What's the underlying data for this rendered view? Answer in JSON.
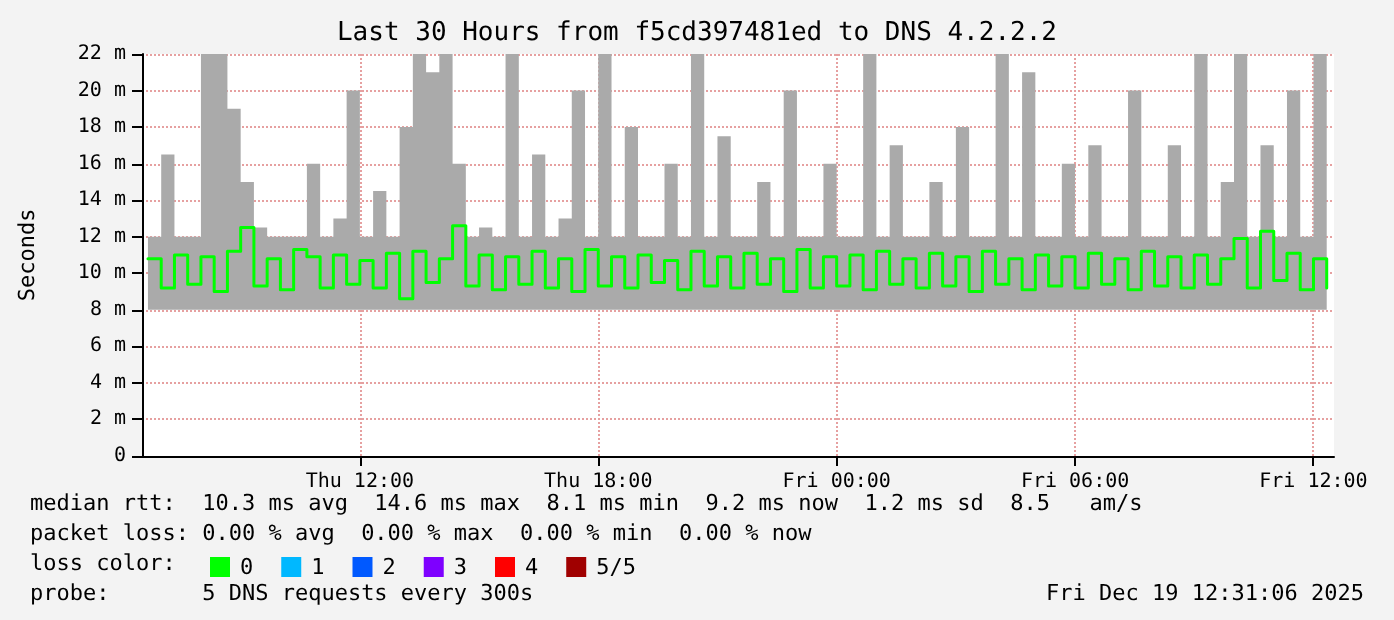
{
  "chart_data": {
    "type": "step",
    "title": "Last 30 Hours from f5cd397481ed to DNS 4.2.2.2",
    "ylabel": "Seconds",
    "legend_title": "loss color:",
    "legend": "bottom",
    "grid": true,
    "marker": "none",
    "line_style": "solid",
    "annotations": [
      "median rtt:  10.3 ms avg  14.6 ms max  8.1 ms min  9.2 ms now  1.2 ms sd  8.5   am/s",
      "packet loss: 0.00 % avg  0.00 % max  0.00 % min  0.00 % now",
      "probe:       5 DNS requests every 300s",
      "Fri Dec 19 12:31:06 2025"
    ],
    "xlim": [
      "2025-12-18T06:31",
      "2025-12-19T12:31"
    ],
    "xticks": [
      {
        "value": "2025-12-18T12:00",
        "label": "Thu 12:00"
      },
      {
        "value": "2025-12-18T18:00",
        "label": "Thu 18:00"
      },
      {
        "value": "2025-12-19T00:00",
        "label": "Fri 00:00"
      },
      {
        "value": "2025-12-19T06:00",
        "label": "Fri 06:00"
      },
      {
        "value": "2025-12-19T12:00",
        "label": "Fri 12:00"
      }
    ],
    "ylim": [
      0,
      22
    ],
    "yticks": [
      0,
      {
        "value": 2,
        "label": "2 m"
      },
      {
        "value": 4,
        "label": "4 m"
      },
      {
        "value": 6,
        "label": "6 m"
      },
      {
        "value": 8,
        "label": "8 m"
      },
      {
        "value": 10,
        "label": "10 m"
      },
      {
        "value": 12,
        "label": "12 m"
      },
      {
        "value": 14,
        "label": "14 m"
      },
      {
        "value": 16,
        "label": "16 m"
      },
      {
        "value": 18,
        "label": "18 m"
      },
      {
        "value": 20,
        "label": "20 m"
      },
      {
        "value": 22,
        "label": "22 m"
      }
    ],
    "x": [
      "2025-12-18T06:40",
      "2025-12-18T07:00",
      "2025-12-18T07:20",
      "2025-12-18T07:40",
      "2025-12-18T08:00",
      "2025-12-18T08:20",
      "2025-12-18T08:40",
      "2025-12-18T09:00",
      "2025-12-18T09:20",
      "2025-12-18T09:40",
      "2025-12-18T10:00",
      "2025-12-18T10:20",
      "2025-12-18T10:40",
      "2025-12-18T11:00",
      "2025-12-18T11:20",
      "2025-12-18T11:40",
      "2025-12-18T12:00",
      "2025-12-18T12:20",
      "2025-12-18T12:40",
      "2025-12-18T13:00",
      "2025-12-18T13:20",
      "2025-12-18T13:40",
      "2025-12-18T14:00",
      "2025-12-18T14:20",
      "2025-12-18T14:40",
      "2025-12-18T15:00",
      "2025-12-18T15:20",
      "2025-12-18T15:40",
      "2025-12-18T16:00",
      "2025-12-18T16:20",
      "2025-12-18T16:40",
      "2025-12-18T17:00",
      "2025-12-18T17:20",
      "2025-12-18T17:40",
      "2025-12-18T18:00",
      "2025-12-18T18:20",
      "2025-12-18T18:40",
      "2025-12-18T19:00",
      "2025-12-18T19:20",
      "2025-12-18T19:40",
      "2025-12-18T20:00",
      "2025-12-18T20:20",
      "2025-12-18T20:40",
      "2025-12-18T21:00",
      "2025-12-18T21:20",
      "2025-12-18T21:40",
      "2025-12-18T22:00",
      "2025-12-18T22:20",
      "2025-12-18T22:40",
      "2025-12-18T23:00",
      "2025-12-18T23:20",
      "2025-12-18T23:40",
      "2025-12-19T00:00",
      "2025-12-19T00:20",
      "2025-12-19T00:40",
      "2025-12-19T01:00",
      "2025-12-19T01:20",
      "2025-12-19T01:40",
      "2025-12-19T02:00",
      "2025-12-19T02:20",
      "2025-12-19T02:40",
      "2025-12-19T03:00",
      "2025-12-19T03:20",
      "2025-12-19T03:40",
      "2025-12-19T04:00",
      "2025-12-19T04:20",
      "2025-12-19T04:40",
      "2025-12-19T05:00",
      "2025-12-19T05:20",
      "2025-12-19T05:40",
      "2025-12-19T06:00",
      "2025-12-19T06:20",
      "2025-12-19T06:40",
      "2025-12-19T07:00",
      "2025-12-19T07:20",
      "2025-12-19T07:40",
      "2025-12-19T08:00",
      "2025-12-19T08:20",
      "2025-12-19T08:40",
      "2025-12-19T09:00",
      "2025-12-19T09:20",
      "2025-12-19T09:40",
      "2025-12-19T10:00",
      "2025-12-19T10:20",
      "2025-12-19T10:40",
      "2025-12-19T11:00",
      "2025-12-19T11:20",
      "2025-12-19T11:40",
      "2025-12-19T12:00",
      "2025-12-19T12:20"
    ],
    "series": [
      {
        "name": "0",
        "color": "#00ff00",
        "values": [
          10.8,
          9.2,
          11,
          9.4,
          10.9,
          9,
          11.2,
          12.5,
          9.3,
          10.8,
          9.1,
          11.3,
          10.9,
          9.2,
          11,
          9.4,
          10.7,
          9.2,
          11.1,
          8.6,
          11.2,
          9.5,
          10.8,
          12.6,
          9.3,
          11,
          9.1,
          10.9,
          9.4,
          11.2,
          9.2,
          10.8,
          9,
          11.3,
          9.3,
          10.9,
          9.2,
          11,
          9.5,
          10.7,
          9.1,
          11.2,
          9.3,
          10.9,
          9.2,
          11.1,
          9.4,
          10.8,
          9,
          11.3,
          9.2,
          10.9,
          9.3,
          11,
          9.1,
          11.2,
          9.4,
          10.8,
          9.2,
          11.1,
          9.3,
          10.9,
          9,
          11.2,
          9.4,
          10.8,
          9.1,
          11,
          9.3,
          10.9,
          9.2,
          11.1,
          9.4,
          10.8,
          9.1,
          11.2,
          9.3,
          10.9,
          9.2,
          11,
          9.4,
          10.8,
          11.9,
          9.2,
          12.3,
          9.6,
          11.1,
          9.1,
          10.8,
          9.2
        ],
        "lower": [
          8,
          8,
          8,
          8,
          8,
          8,
          8,
          8,
          8,
          8,
          8,
          8,
          8,
          8,
          8,
          8,
          8,
          8,
          8,
          8,
          8,
          8,
          8,
          8,
          8,
          8,
          8,
          8,
          8,
          8,
          8,
          8,
          8,
          8,
          8,
          8,
          8,
          8,
          8,
          8,
          8,
          8,
          8,
          8,
          8,
          8,
          8,
          8,
          8,
          8,
          8,
          8,
          8,
          8,
          8,
          8,
          8,
          8,
          8,
          8,
          8,
          8,
          8,
          8,
          8,
          8,
          8,
          8,
          8,
          8,
          8,
          8,
          8,
          8,
          8,
          8,
          8,
          8,
          8,
          8,
          8,
          8,
          8,
          8,
          8,
          8,
          8,
          8,
          8,
          8
        ],
        "upper": [
          12,
          16.5,
          12,
          12,
          22,
          22,
          19,
          15,
          12.5,
          12,
          12,
          12,
          16,
          12,
          13,
          20,
          12,
          14.5,
          12,
          18,
          22,
          21,
          22,
          16,
          12,
          12.5,
          12,
          22,
          12,
          16.5,
          12,
          13,
          20,
          12,
          22,
          12,
          18,
          12,
          12,
          16,
          12,
          22,
          12,
          17.5,
          12,
          12,
          15,
          12,
          20,
          12,
          12,
          16,
          12,
          12,
          22,
          12,
          17,
          12,
          12,
          15,
          12,
          18,
          12,
          12,
          22,
          12,
          21,
          12,
          12,
          16,
          12,
          17,
          12,
          12,
          20,
          12,
          12,
          17,
          12,
          22,
          12,
          15,
          22,
          12,
          17,
          12,
          20,
          12,
          22,
          15
        ]
      },
      {
        "name": "1",
        "color": "#00b8ff",
        "values": [
          null,
          null,
          null,
          null,
          null,
          null,
          null,
          null,
          null,
          null,
          null,
          null,
          null,
          null,
          null,
          null,
          null,
          null,
          null,
          null,
          null,
          null,
          null,
          null,
          null,
          null,
          null,
          null,
          null,
          null,
          null,
          null,
          null,
          null,
          null,
          null,
          null,
          null,
          null,
          null,
          null,
          null,
          null,
          null,
          null,
          null,
          null,
          null,
          null,
          null,
          null,
          null,
          null,
          null,
          null,
          null,
          null,
          null,
          null,
          null,
          null,
          null,
          null,
          null,
          null,
          null,
          null,
          null,
          null,
          null,
          null,
          null,
          null,
          null,
          null,
          null,
          null,
          null,
          null,
          null,
          null,
          null,
          null,
          null,
          null,
          null,
          null,
          null,
          null,
          null
        ]
      },
      {
        "name": "2",
        "color": "#0059ff",
        "values": [
          null,
          null,
          null,
          null,
          null,
          null,
          null,
          null,
          null,
          null,
          null,
          null,
          null,
          null,
          null,
          null,
          null,
          null,
          null,
          null,
          null,
          null,
          null,
          null,
          null,
          null,
          null,
          null,
          null,
          null,
          null,
          null,
          null,
          null,
          null,
          null,
          null,
          null,
          null,
          null,
          null,
          null,
          null,
          null,
          null,
          null,
          null,
          null,
          null,
          null,
          null,
          null,
          null,
          null,
          null,
          null,
          null,
          null,
          null,
          null,
          null,
          null,
          null,
          null,
          null,
          null,
          null,
          null,
          null,
          null,
          null,
          null,
          null,
          null,
          null,
          null,
          null,
          null,
          null,
          null,
          null,
          null,
          null,
          null,
          null,
          null,
          null,
          null,
          null,
          null
        ]
      },
      {
        "name": "3",
        "color": "#7e00ff",
        "values": [
          null,
          null,
          null,
          null,
          null,
          null,
          null,
          null,
          null,
          null,
          null,
          null,
          null,
          null,
          null,
          null,
          null,
          null,
          null,
          null,
          null,
          null,
          null,
          null,
          null,
          null,
          null,
          null,
          null,
          null,
          null,
          null,
          null,
          null,
          null,
          null,
          null,
          null,
          null,
          null,
          null,
          null,
          null,
          null,
          null,
          null,
          null,
          null,
          null,
          null,
          null,
          null,
          null,
          null,
          null,
          null,
          null,
          null,
          null,
          null,
          null,
          null,
          null,
          null,
          null,
          null,
          null,
          null,
          null,
          null,
          null,
          null,
          null,
          null,
          null,
          null,
          null,
          null,
          null,
          null,
          null,
          null,
          null,
          null,
          null,
          null,
          null,
          null,
          null,
          null
        ]
      },
      {
        "name": "4",
        "color": "#ff0000",
        "values": [
          null,
          null,
          null,
          null,
          null,
          null,
          null,
          null,
          null,
          null,
          null,
          null,
          null,
          null,
          null,
          null,
          null,
          null,
          null,
          null,
          null,
          null,
          null,
          null,
          null,
          null,
          null,
          null,
          null,
          null,
          null,
          null,
          null,
          null,
          null,
          null,
          null,
          null,
          null,
          null,
          null,
          null,
          null,
          null,
          null,
          null,
          null,
          null,
          null,
          null,
          null,
          null,
          null,
          null,
          null,
          null,
          null,
          null,
          null,
          null,
          null,
          null,
          null,
          null,
          null,
          null,
          null,
          null,
          null,
          null,
          null,
          null,
          null,
          null,
          null,
          null,
          null,
          null,
          null,
          null,
          null,
          null,
          null,
          null,
          null,
          null,
          null,
          null,
          null,
          null
        ]
      },
      {
        "name": "5/5",
        "color": "#a00000",
        "values": [
          null,
          null,
          null,
          null,
          null,
          null,
          null,
          null,
          null,
          null,
          null,
          null,
          null,
          null,
          null,
          null,
          null,
          null,
          null,
          null,
          null,
          null,
          null,
          null,
          null,
          null,
          null,
          null,
          null,
          null,
          null,
          null,
          null,
          null,
          null,
          null,
          null,
          null,
          null,
          null,
          null,
          null,
          null,
          null,
          null,
          null,
          null,
          null,
          null,
          null,
          null,
          null,
          null,
          null,
          null,
          null,
          null,
          null,
          null,
          null,
          null,
          null,
          null,
          null,
          null,
          null,
          null,
          null,
          null,
          null,
          null,
          null,
          null,
          null,
          null,
          null,
          null,
          null,
          null,
          null,
          null,
          null,
          null,
          null,
          null,
          null,
          null,
          null,
          null,
          null
        ]
      }
    ]
  }
}
